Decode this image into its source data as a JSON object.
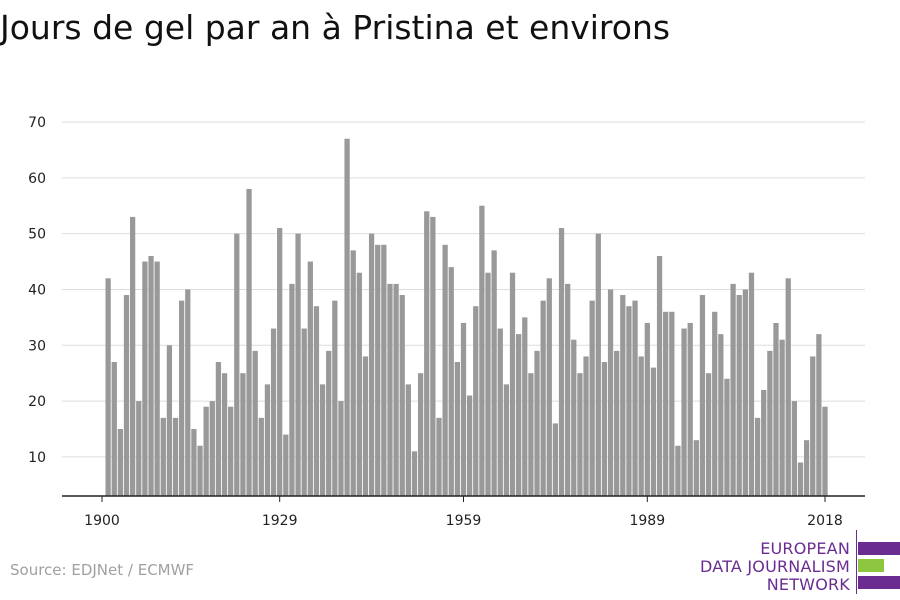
{
  "title": "Jours de gel par an à Pristina et environs",
  "source": "Source: EDJNet / ECMWF",
  "logo": {
    "line1": "EUROPEAN",
    "line2": "DATA JOURNALISM",
    "line3": "NETWORK",
    "colors": {
      "purple": "#6a2c91",
      "green": "#8dc63f"
    }
  },
  "colors": {
    "bar": "#999999",
    "grid": "#dddddd",
    "axis": "#222222"
  },
  "chart_data": {
    "type": "bar",
    "title": "Jours de gel par an à Pristina et environs",
    "xlabel": "",
    "ylabel": "",
    "ylim": [
      3,
      70
    ],
    "xlim": [
      1900,
      2018
    ],
    "yticks": [
      10,
      20,
      30,
      40,
      50,
      60,
      70
    ],
    "xticks": [
      1900,
      1929,
      1959,
      1989,
      2018
    ],
    "grid": true,
    "start_year": 1901,
    "values": [
      42,
      27,
      15,
      39,
      53,
      20,
      45,
      46,
      45,
      17,
      30,
      17,
      38,
      40,
      15,
      12,
      19,
      20,
      27,
      25,
      19,
      50,
      25,
      58,
      29,
      17,
      23,
      33,
      51,
      14,
      41,
      50,
      33,
      45,
      37,
      23,
      29,
      38,
      20,
      67,
      47,
      43,
      28,
      50,
      48,
      48,
      41,
      41,
      39,
      23,
      11,
      25,
      54,
      53,
      17,
      48,
      44,
      27,
      34,
      21,
      37,
      55,
      43,
      47,
      33,
      23,
      43,
      32,
      35,
      25,
      29,
      38,
      42,
      16,
      51,
      41,
      31,
      25,
      28,
      38,
      50,
      27,
      40,
      29,
      39,
      37,
      38,
      28,
      34,
      26,
      46,
      36,
      36,
      12,
      33,
      34,
      13,
      39,
      25,
      36,
      32,
      24,
      41,
      39,
      40,
      43,
      17,
      22,
      29,
      34,
      31,
      42,
      20,
      9,
      13,
      28,
      32,
      19
    ]
  }
}
